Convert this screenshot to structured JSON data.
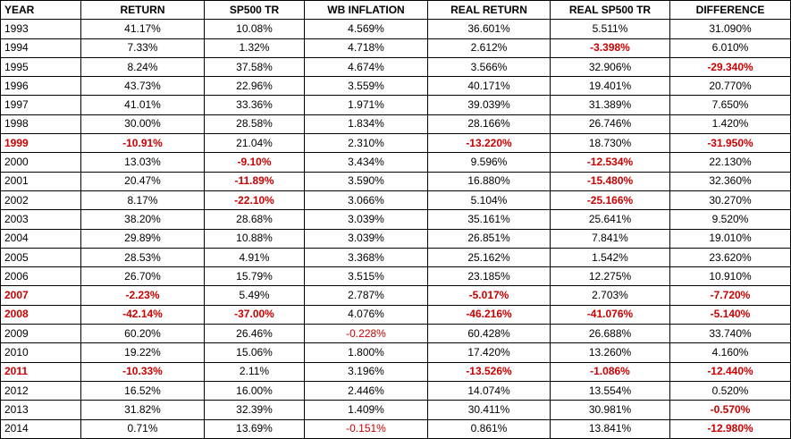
{
  "table": {
    "headers": [
      "YEAR",
      "RETURN",
      "SP500 TR",
      "WB INFLATION",
      "REAL RETURN",
      "REAL SP500 TR",
      "DIFFERENCE"
    ],
    "rows": [
      [
        "1993",
        "41.17%",
        "10.08%",
        "4.569%",
        "36.601%",
        "5.511%",
        "31.090%"
      ],
      [
        "1994",
        "7.33%",
        "1.32%",
        "4.718%",
        "2.612%",
        "-3.398%",
        "6.010%"
      ],
      [
        "1995",
        "8.24%",
        "37.58%",
        "4.674%",
        "3.566%",
        "32.906%",
        "-29.340%"
      ],
      [
        "1996",
        "43.73%",
        "22.96%",
        "3.559%",
        "40.171%",
        "19.401%",
        "20.770%"
      ],
      [
        "1997",
        "41.01%",
        "33.36%",
        "1.971%",
        "39.039%",
        "31.389%",
        "7.650%"
      ],
      [
        "1998",
        "30.00%",
        "28.58%",
        "1.834%",
        "28.166%",
        "26.746%",
        "1.420%"
      ],
      [
        "1999",
        "-10.91%",
        "21.04%",
        "2.310%",
        "-13.220%",
        "18.730%",
        "-31.950%"
      ],
      [
        "2000",
        "13.03%",
        "-9.10%",
        "3.434%",
        "9.596%",
        "-12.534%",
        "22.130%"
      ],
      [
        "2001",
        "20.47%",
        "-11.89%",
        "3.590%",
        "16.880%",
        "-15.480%",
        "32.360%"
      ],
      [
        "2002",
        "8.17%",
        "-22.10%",
        "3.066%",
        "5.104%",
        "-25.166%",
        "30.270%"
      ],
      [
        "2003",
        "38.20%",
        "28.68%",
        "3.039%",
        "35.161%",
        "25.641%",
        "9.520%"
      ],
      [
        "2004",
        "29.89%",
        "10.88%",
        "3.039%",
        "26.851%",
        "7.841%",
        "19.010%"
      ],
      [
        "2005",
        "28.53%",
        "4.91%",
        "3.368%",
        "25.162%",
        "1.542%",
        "23.620%"
      ],
      [
        "2006",
        "26.70%",
        "15.79%",
        "3.515%",
        "23.185%",
        "12.275%",
        "10.910%"
      ],
      [
        "2007",
        "-2.23%",
        "5.49%",
        "2.787%",
        "-5.017%",
        "2.703%",
        "-7.720%"
      ],
      [
        "2008",
        "-42.14%",
        "-37.00%",
        "4.076%",
        "-46.216%",
        "-41.076%",
        "-5.140%"
      ],
      [
        "2009",
        "60.20%",
        "26.46%",
        "-0.228%",
        "60.428%",
        "26.688%",
        "33.740%"
      ],
      [
        "2010",
        "19.22%",
        "15.06%",
        "1.800%",
        "17.420%",
        "13.260%",
        "4.160%"
      ],
      [
        "2011",
        "-10.33%",
        "2.11%",
        "3.196%",
        "-13.526%",
        "-1.086%",
        "-12.440%"
      ],
      [
        "2012",
        "16.52%",
        "16.00%",
        "2.446%",
        "14.074%",
        "13.554%",
        "0.520%"
      ],
      [
        "2013",
        "31.82%",
        "32.39%",
        "1.409%",
        "30.411%",
        "30.981%",
        "-0.570%"
      ],
      [
        "2014",
        "0.71%",
        "13.69%",
        "-0.151%",
        "0.861%",
        "13.841%",
        "-12.980%"
      ]
    ],
    "colors": {
      "negative_text": "#cc0000",
      "text": "#000000",
      "border": "#000000",
      "background": "#ffffff"
    }
  }
}
